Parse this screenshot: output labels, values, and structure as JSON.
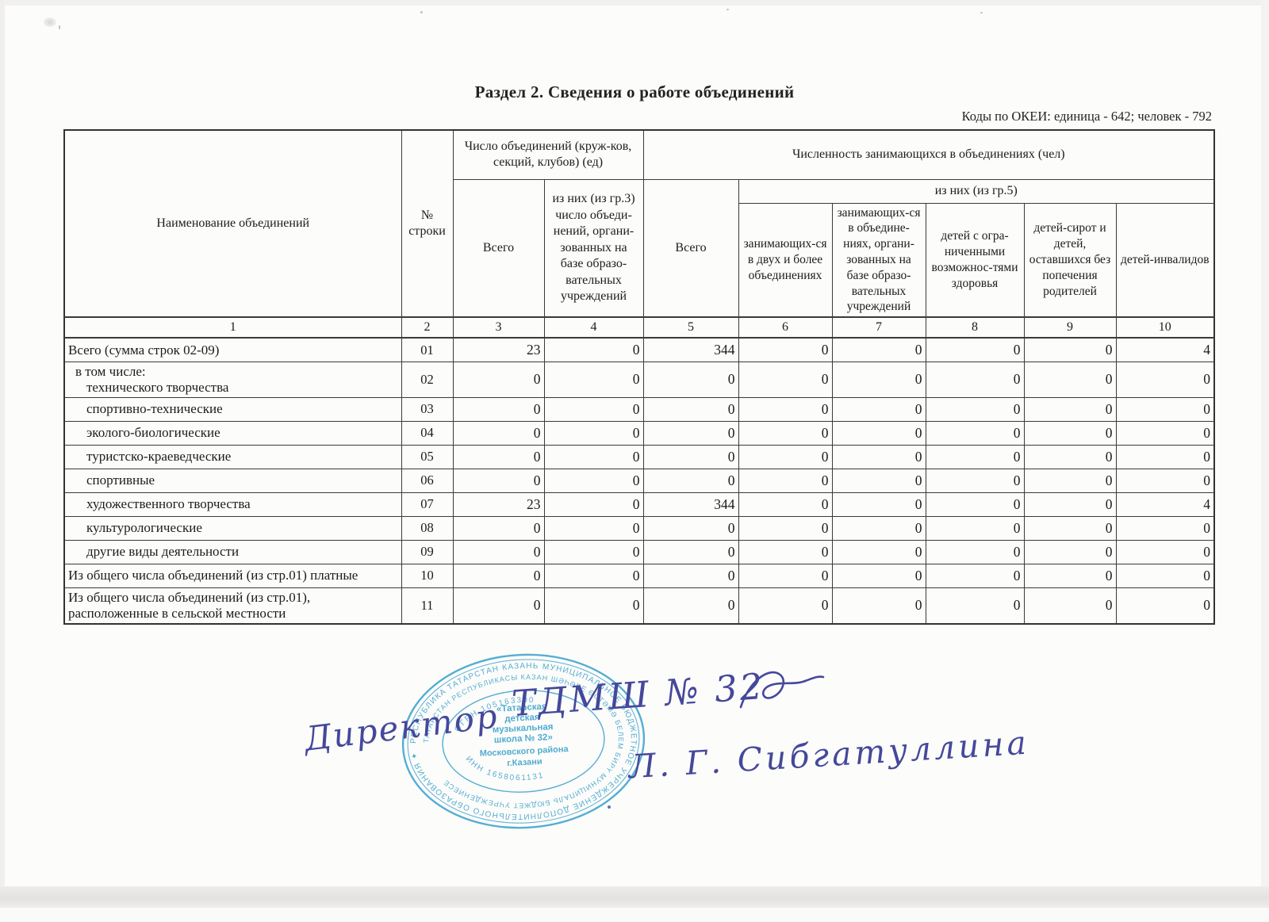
{
  "page": {
    "title": "Раздел 2. Сведения о работе объединений",
    "codes_note": "Коды по ОКЕИ: единица - 642; человек - 792"
  },
  "table": {
    "header": {
      "name": "Наименование объединений",
      "line_no": "№ строки",
      "group_count": "Число объединений (круж-ков, секций, клубов) (ед)",
      "group_people": "Численность занимающихся в объединениях (чел)",
      "count_total": "Всего",
      "count_of_which": "из них (из гр.3) число объеди-нений, органи-зованных на базе образо-вательных учреждений",
      "people_total": "Всего",
      "people_of_which": "из них (из гр.5)",
      "sub1": "занимающих-ся в двух и более объединениях",
      "sub2": "занимающих-ся в объедине-ниях, органи-зованных на базе образо-вательных учреждений",
      "sub3": "детей с огра-ниченными возможнос-тями здоровья",
      "sub4": "детей-сирот и детей, оставшихся без попечения родителей",
      "sub5": "детей-инвалидов"
    },
    "col_numbers": [
      "1",
      "2",
      "3",
      "4",
      "5",
      "6",
      "7",
      "8",
      "9",
      "10"
    ],
    "rows": [
      {
        "name": "Всего (сумма строк 02-09)",
        "line": "01",
        "indent": false,
        "values": [
          "23",
          "0",
          "344",
          "0",
          "0",
          "0",
          "0",
          "4"
        ]
      },
      {
        "prefix": "в том числе:",
        "name": "технического творчества",
        "line": "02",
        "indent": false,
        "values": [
          "0",
          "0",
          "0",
          "0",
          "0",
          "0",
          "0",
          "0"
        ]
      },
      {
        "name": "спортивно-технические",
        "line": "03",
        "indent": true,
        "values": [
          "0",
          "0",
          "0",
          "0",
          "0",
          "0",
          "0",
          "0"
        ]
      },
      {
        "name": "эколого-биологические",
        "line": "04",
        "indent": true,
        "values": [
          "0",
          "0",
          "0",
          "0",
          "0",
          "0",
          "0",
          "0"
        ]
      },
      {
        "name": "туристско-краеведческие",
        "line": "05",
        "indent": true,
        "values": [
          "0",
          "0",
          "0",
          "0",
          "0",
          "0",
          "0",
          "0"
        ]
      },
      {
        "name": "спортивные",
        "line": "06",
        "indent": true,
        "values": [
          "0",
          "0",
          "0",
          "0",
          "0",
          "0",
          "0",
          "0"
        ]
      },
      {
        "name": "художественного творчества",
        "line": "07",
        "indent": true,
        "values": [
          "23",
          "0",
          "344",
          "0",
          "0",
          "0",
          "0",
          "4"
        ]
      },
      {
        "name": "культурологические",
        "line": "08",
        "indent": true,
        "values": [
          "0",
          "0",
          "0",
          "0",
          "0",
          "0",
          "0",
          "0"
        ]
      },
      {
        "name": "другие виды деятельности",
        "line": "09",
        "indent": true,
        "values": [
          "0",
          "0",
          "0",
          "0",
          "0",
          "0",
          "0",
          "0"
        ]
      },
      {
        "name": "Из общего числа объединений (из стр.01) платные",
        "line": "10",
        "indent": false,
        "values": [
          "0",
          "0",
          "0",
          "0",
          "0",
          "0",
          "0",
          "0"
        ]
      },
      {
        "name": "Из общего числа объединений (из стр.01),",
        "name2": "расположенные в сельской местности",
        "line": "11",
        "indent": false,
        "values": [
          "0",
          "0",
          "0",
          "0",
          "0",
          "0",
          "0",
          "0"
        ]
      }
    ]
  },
  "stamp": {
    "ring_outer": "РЕСПУБЛИКА ТАТАРСТАН  КАЗАНЬ МУНИЦИПАЛЬНОЕ БЮДЖЕТНОЕ УЧРЕЖДЕНИЕ ДОПОЛНИТЕЛЬНОГО ОБРАЗОВАНИЯ ✦",
    "ring_inner": "ТАТАРСТАН РЕСПУБЛИКАСЫ  КАЗАН ШӘҺӘРЕ ӨСТӘМӘ БЕЛЕМ БИРҮ МУНИЦИПАЛЬ БЮДЖЕТ УЧРЕЖДЕНИЕСЕ",
    "ogrn": "ОГРН 105163300",
    "inn": "ИНН 1658061131",
    "center_lines": [
      "«Татарская",
      "детская",
      "музыкальная",
      "школа № 32»",
      "Московского района",
      "г.Казани"
    ],
    "color": "#3da3cf"
  },
  "handwriting": {
    "role": "Директор",
    "org": "ТДМШ № 32",
    "name": "Л. Г. Сибгатуллина",
    "ink": "#45489b"
  }
}
